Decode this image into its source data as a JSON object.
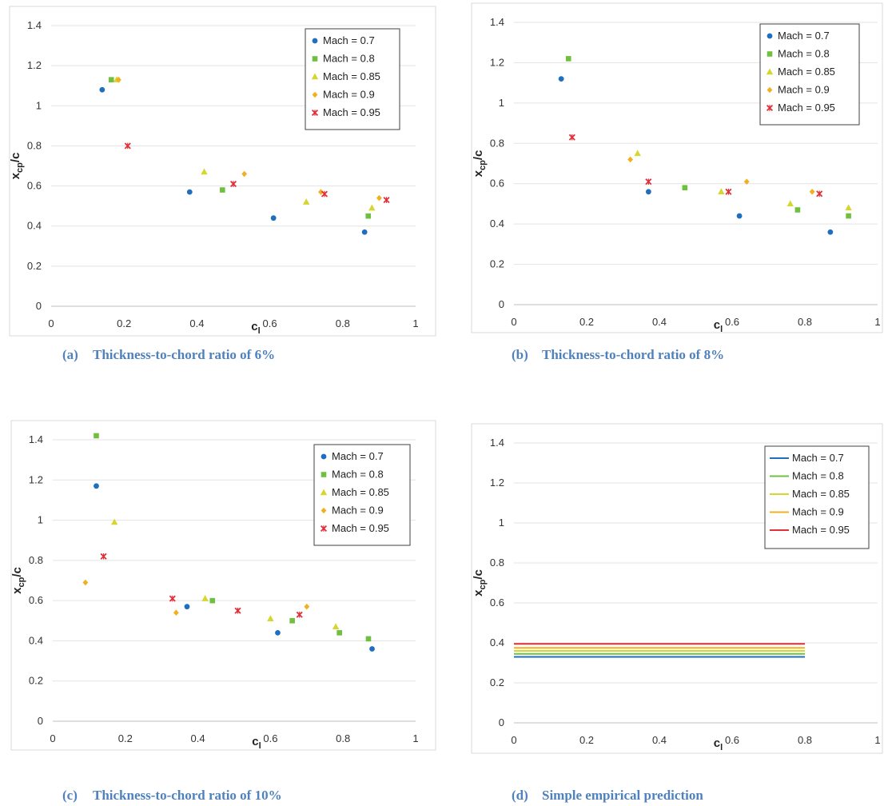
{
  "captions": [
    {
      "tag": "(a)",
      "text": "Thickness-to-chord ratio of 6%"
    },
    {
      "tag": "(b)",
      "text": "Thickness-to-chord ratio of 8%"
    },
    {
      "tag": "(c)",
      "text": "Thickness-to-chord ratio of 10%"
    },
    {
      "tag": "(d)",
      "text": "Simple empirical prediction"
    }
  ],
  "series_colors": {
    "Mach = 0.7": "#1f6fbf",
    "Mach = 0.8": "#70c040",
    "Mach = 0.85": "#d6d630",
    "Mach = 0.9": "#f0b020",
    "Mach = 0.95": "#e0303a"
  },
  "series_markers": {
    "Mach = 0.7": "circle",
    "Mach = 0.8": "square",
    "Mach = 0.85": "triangle",
    "Mach = 0.9": "diamond",
    "Mach = 0.95": "x-star"
  },
  "chart_data": [
    {
      "type": "scatter",
      "xlabel": "c_l",
      "ylabel": "x_cp/c",
      "xlim": [
        0,
        1
      ],
      "ylim": [
        0,
        1.4
      ],
      "xticks": [
        "0",
        "0.2",
        "0.4",
        "0.6",
        "0.8",
        "1"
      ],
      "yticks": [
        "0",
        "0.2",
        "0.4",
        "0.6",
        "0.8",
        "1",
        "1.2",
        "1.4"
      ],
      "grid": "horizontal",
      "legend": "top-right",
      "series": [
        {
          "name": "Mach = 0.7",
          "points": [
            [
              0.14,
              1.08
            ],
            [
              0.38,
              0.57
            ],
            [
              0.61,
              0.44
            ],
            [
              0.86,
              0.37
            ]
          ]
        },
        {
          "name": "Mach = 0.8",
          "points": [
            [
              0.165,
              1.13
            ],
            [
              0.47,
              0.58
            ],
            [
              0.87,
              0.45
            ]
          ]
        },
        {
          "name": "Mach = 0.85",
          "points": [
            [
              0.18,
              1.13
            ],
            [
              0.42,
              0.67
            ],
            [
              0.7,
              0.52
            ],
            [
              0.88,
              0.49
            ]
          ]
        },
        {
          "name": "Mach = 0.9",
          "points": [
            [
              0.185,
              1.13
            ],
            [
              0.53,
              0.66
            ],
            [
              0.74,
              0.57
            ],
            [
              0.9,
              0.54
            ]
          ]
        },
        {
          "name": "Mach = 0.95",
          "points": [
            [
              0.21,
              0.8
            ],
            [
              0.5,
              0.61
            ],
            [
              0.75,
              0.56
            ],
            [
              0.92,
              0.53
            ]
          ]
        }
      ]
    },
    {
      "type": "scatter",
      "xlabel": "c_l",
      "ylabel": "x_cp/c",
      "xlim": [
        0,
        1
      ],
      "ylim": [
        0,
        1.4
      ],
      "xticks": [
        "0",
        "0.2",
        "0.4",
        "0.6",
        "0.8",
        "1"
      ],
      "yticks": [
        "0",
        "0.2",
        "0.4",
        "0.6",
        "0.8",
        "1",
        "1.2",
        "1.4"
      ],
      "grid": "horizontal",
      "legend": "top-right",
      "series": [
        {
          "name": "Mach = 0.7",
          "points": [
            [
              0.13,
              1.12
            ],
            [
              0.37,
              0.56
            ],
            [
              0.62,
              0.44
            ],
            [
              0.87,
              0.36
            ]
          ]
        },
        {
          "name": "Mach = 0.8",
          "points": [
            [
              0.15,
              1.22
            ],
            [
              0.47,
              0.58
            ],
            [
              0.78,
              0.47
            ],
            [
              0.92,
              0.44
            ]
          ]
        },
        {
          "name": "Mach = 0.85",
          "points": [
            [
              0.34,
              0.75
            ],
            [
              0.57,
              0.56
            ],
            [
              0.76,
              0.5
            ],
            [
              0.92,
              0.48
            ]
          ]
        },
        {
          "name": "Mach = 0.9",
          "points": [
            [
              0.32,
              0.72
            ],
            [
              0.64,
              0.61
            ],
            [
              0.82,
              0.56
            ]
          ]
        },
        {
          "name": "Mach = 0.95",
          "points": [
            [
              0.16,
              0.83
            ],
            [
              0.37,
              0.61
            ],
            [
              0.59,
              0.56
            ],
            [
              0.84,
              0.55
            ]
          ]
        }
      ]
    },
    {
      "type": "scatter",
      "xlabel": "c_l",
      "ylabel": "x_cp/c",
      "xlim": [
        0,
        1
      ],
      "ylim": [
        0,
        1.4
      ],
      "xticks": [
        "0",
        "0.2",
        "0.4",
        "0.6",
        "0.8",
        "1"
      ],
      "yticks": [
        "0",
        "0.2",
        "0.4",
        "0.6",
        "0.8",
        "1",
        "1.2",
        "1.4"
      ],
      "grid": "horizontal",
      "legend": "top-right",
      "series": [
        {
          "name": "Mach = 0.7",
          "points": [
            [
              0.12,
              1.17
            ],
            [
              0.37,
              0.57
            ],
            [
              0.62,
              0.44
            ],
            [
              0.88,
              0.36
            ]
          ]
        },
        {
          "name": "Mach = 0.8",
          "points": [
            [
              0.12,
              1.42
            ],
            [
              0.44,
              0.6
            ],
            [
              0.66,
              0.5
            ],
            [
              0.79,
              0.44
            ],
            [
              0.87,
              0.41
            ]
          ]
        },
        {
          "name": "Mach = 0.85",
          "points": [
            [
              0.17,
              0.99
            ],
            [
              0.42,
              0.61
            ],
            [
              0.6,
              0.51
            ],
            [
              0.78,
              0.47
            ]
          ]
        },
        {
          "name": "Mach = 0.9",
          "points": [
            [
              0.09,
              0.69
            ],
            [
              0.34,
              0.54
            ],
            [
              0.7,
              0.57
            ]
          ]
        },
        {
          "name": "Mach = 0.95",
          "points": [
            [
              0.14,
              0.82
            ],
            [
              0.33,
              0.61
            ],
            [
              0.51,
              0.55
            ],
            [
              0.68,
              0.53
            ]
          ]
        }
      ]
    },
    {
      "type": "line",
      "xlabel": "c_l",
      "ylabel": "x_cp/c",
      "xlim": [
        0,
        1
      ],
      "ylim": [
        0,
        1.4
      ],
      "xticks": [
        "0",
        "0.2",
        "0.4",
        "0.6",
        "0.8",
        "1"
      ],
      "yticks": [
        "0",
        "0.2",
        "0.4",
        "0.6",
        "0.8",
        "1",
        "1.2",
        "1.4"
      ],
      "grid": "horizontal",
      "legend": "top-right",
      "series": [
        {
          "name": "Mach = 0.7",
          "x": [
            0,
            0.8
          ],
          "y": [
            0.33,
            0.33
          ]
        },
        {
          "name": "Mach = 0.8",
          "x": [
            0,
            0.8
          ],
          "y": [
            0.345,
            0.345
          ]
        },
        {
          "name": "Mach = 0.85",
          "x": [
            0,
            0.8
          ],
          "y": [
            0.36,
            0.36
          ]
        },
        {
          "name": "Mach = 0.9",
          "x": [
            0,
            0.8
          ],
          "y": [
            0.375,
            0.375
          ]
        },
        {
          "name": "Mach = 0.95",
          "x": [
            0,
            0.8
          ],
          "y": [
            0.395,
            0.395
          ]
        }
      ]
    }
  ]
}
